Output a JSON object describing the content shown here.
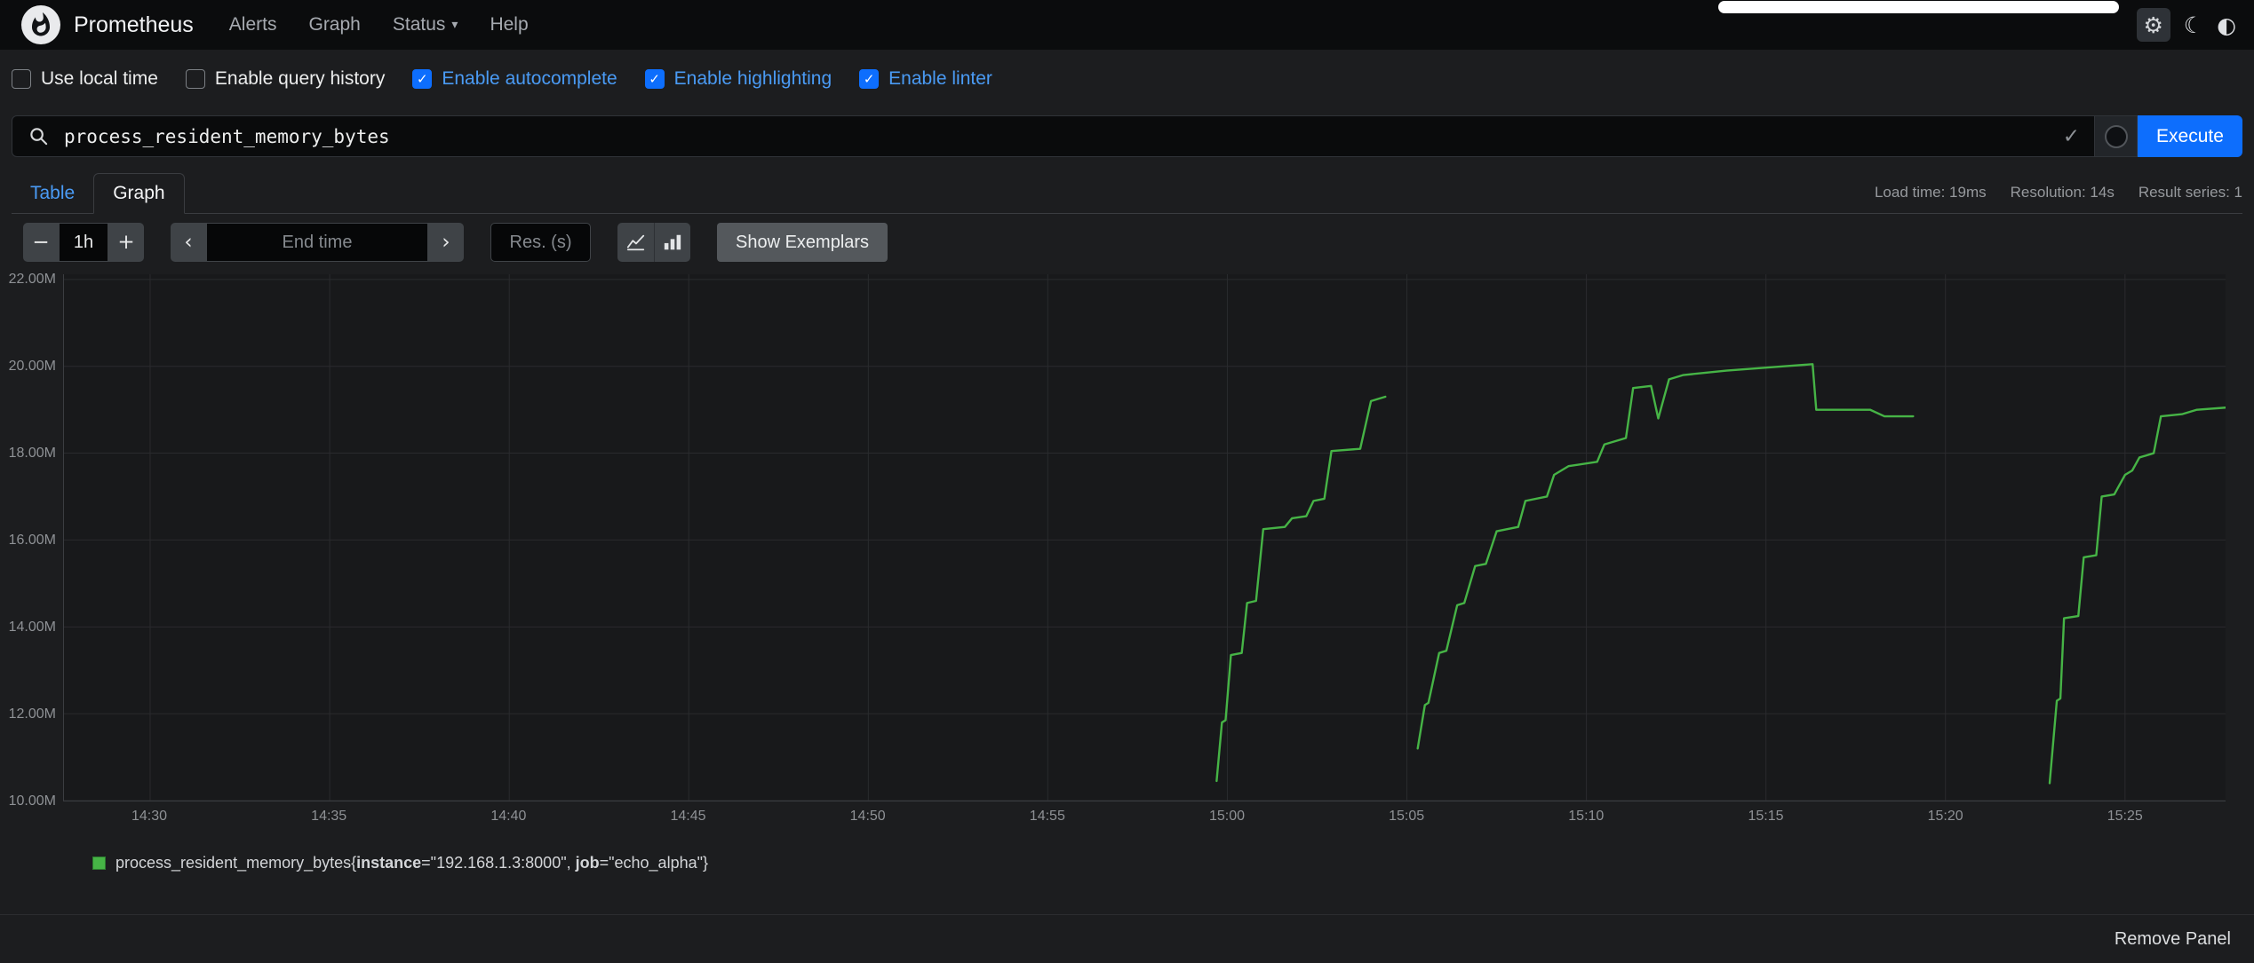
{
  "navbar": {
    "brand": "Prometheus",
    "links": [
      {
        "label": "Alerts"
      },
      {
        "label": "Graph"
      },
      {
        "label": "Status",
        "dropdown": true
      },
      {
        "label": "Help"
      }
    ]
  },
  "icons": {
    "gear": "⚙",
    "moon": "☾",
    "contrast": "◐",
    "check": "✓",
    "caret": "▾"
  },
  "options": {
    "checkboxes": [
      {
        "label": "Use local time",
        "checked": false
      },
      {
        "label": "Enable query history",
        "checked": false
      },
      {
        "label": "Enable autocomplete",
        "checked": true
      },
      {
        "label": "Enable highlighting",
        "checked": true
      },
      {
        "label": "Enable linter",
        "checked": true
      }
    ]
  },
  "query": {
    "expression": "process_resident_memory_bytes",
    "execute_label": "Execute"
  },
  "tabs": {
    "items": [
      {
        "label": "Table",
        "active": false
      },
      {
        "label": "Graph",
        "active": true
      }
    ],
    "stats": [
      "Load time: 19ms",
      "Resolution: 14s",
      "Result series: 1"
    ]
  },
  "controls": {
    "minus_label": "−",
    "range_value": "1h",
    "plus_label": "+",
    "prev_label": "‹",
    "next_label": "›",
    "end_time_placeholder": "End time",
    "res_placeholder": "Res. (s)",
    "show_exemplars_label": "Show Exemplars"
  },
  "legend": {
    "metric_open": "process_resident_memory_bytes{",
    "label1_key": "instance",
    "label1_rest": "=\"192.168.1.3:8000\", ",
    "label2_key": "job",
    "label2_rest": "=\"echo_alpha\"}"
  },
  "footer": {
    "remove_panel_label": "Remove Panel"
  },
  "colors": {
    "accent_blue": "#0d6efd",
    "link_blue": "#4a9bf5",
    "series_green": "#46b446"
  },
  "chart_data": {
    "type": "line",
    "title": "",
    "xlabel": "",
    "ylabel": "",
    "grid": true,
    "x_unit": "minutes after 14:30",
    "x_domain": [
      -2.4,
      57.8
    ],
    "y_domain": [
      10.0,
      22.12
    ],
    "x_ticks": [
      {
        "t": 0,
        "label": "14:30"
      },
      {
        "t": 5,
        "label": "14:35"
      },
      {
        "t": 10,
        "label": "14:40"
      },
      {
        "t": 15,
        "label": "14:45"
      },
      {
        "t": 20,
        "label": "14:50"
      },
      {
        "t": 25,
        "label": "14:55"
      },
      {
        "t": 30,
        "label": "15:00"
      },
      {
        "t": 35,
        "label": "15:05"
      },
      {
        "t": 40,
        "label": "15:10"
      },
      {
        "t": 45,
        "label": "15:15"
      },
      {
        "t": 50,
        "label": "15:20"
      },
      {
        "t": 55,
        "label": "15:25"
      }
    ],
    "y_ticks": [
      {
        "v": 10,
        "label": "10.00M"
      },
      {
        "v": 12,
        "label": "12.00M"
      },
      {
        "v": 14,
        "label": "14.00M"
      },
      {
        "v": 16,
        "label": "16.00M"
      },
      {
        "v": 18,
        "label": "18.00M"
      },
      {
        "v": 20,
        "label": "20.00M"
      },
      {
        "v": 22,
        "label": "22.00M"
      }
    ],
    "series": [
      {
        "name": "process_resident_memory_bytes{instance=\"192.168.1.3:8000\", job=\"echo_alpha\"}",
        "color": "#46b446",
        "segments": [
          [
            [
              29.7,
              10.45
            ],
            [
              29.85,
              11.8
            ],
            [
              29.95,
              11.85
            ],
            [
              30.1,
              13.35
            ],
            [
              30.4,
              13.4
            ],
            [
              30.55,
              14.55
            ],
            [
              30.8,
              14.6
            ],
            [
              31,
              16.25
            ],
            [
              31.6,
              16.3
            ],
            [
              31.8,
              16.5
            ],
            [
              32.2,
              16.55
            ],
            [
              32.4,
              16.9
            ],
            [
              32.7,
              16.95
            ],
            [
              32.9,
              18.05
            ],
            [
              33.7,
              18.1
            ],
            [
              34,
              19.2
            ],
            [
              34.4,
              19.3
            ]
          ],
          [
            [
              35.3,
              11.2
            ],
            [
              35.5,
              12.2
            ],
            [
              35.6,
              12.25
            ],
            [
              35.9,
              13.4
            ],
            [
              36.1,
              13.45
            ],
            [
              36.4,
              14.5
            ],
            [
              36.6,
              14.55
            ],
            [
              36.9,
              15.4
            ],
            [
              37.2,
              15.45
            ],
            [
              37.5,
              16.2
            ],
            [
              38.1,
              16.3
            ],
            [
              38.3,
              16.9
            ],
            [
              38.9,
              17
            ],
            [
              39.1,
              17.5
            ],
            [
              39.5,
              17.7
            ],
            [
              40.3,
              17.8
            ],
            [
              40.5,
              18.2
            ],
            [
              41.1,
              18.35
            ],
            [
              41.3,
              19.5
            ],
            [
              41.8,
              19.55
            ],
            [
              42,
              18.8
            ],
            [
              42.3,
              19.7
            ],
            [
              42.7,
              19.8
            ],
            [
              43.9,
              19.9
            ],
            [
              45.5,
              20
            ],
            [
              46.3,
              20.05
            ],
            [
              46.4,
              19
            ],
            [
              47.9,
              19
            ],
            [
              48.3,
              18.85
            ],
            [
              49.1,
              18.85
            ]
          ],
          [
            [
              52.9,
              10.4
            ],
            [
              53.1,
              12.3
            ],
            [
              53.2,
              12.35
            ],
            [
              53.3,
              14.2
            ],
            [
              53.7,
              14.25
            ],
            [
              53.85,
              15.6
            ],
            [
              54.2,
              15.65
            ],
            [
              54.35,
              17
            ],
            [
              54.7,
              17.05
            ],
            [
              54.8,
              17.2
            ],
            [
              55,
              17.5
            ],
            [
              55.2,
              17.6
            ],
            [
              55.4,
              17.9
            ],
            [
              55.8,
              18
            ],
            [
              56,
              18.85
            ],
            [
              56.6,
              18.9
            ],
            [
              57,
              19
            ],
            [
              57.8,
              19.05
            ]
          ]
        ]
      }
    ]
  }
}
